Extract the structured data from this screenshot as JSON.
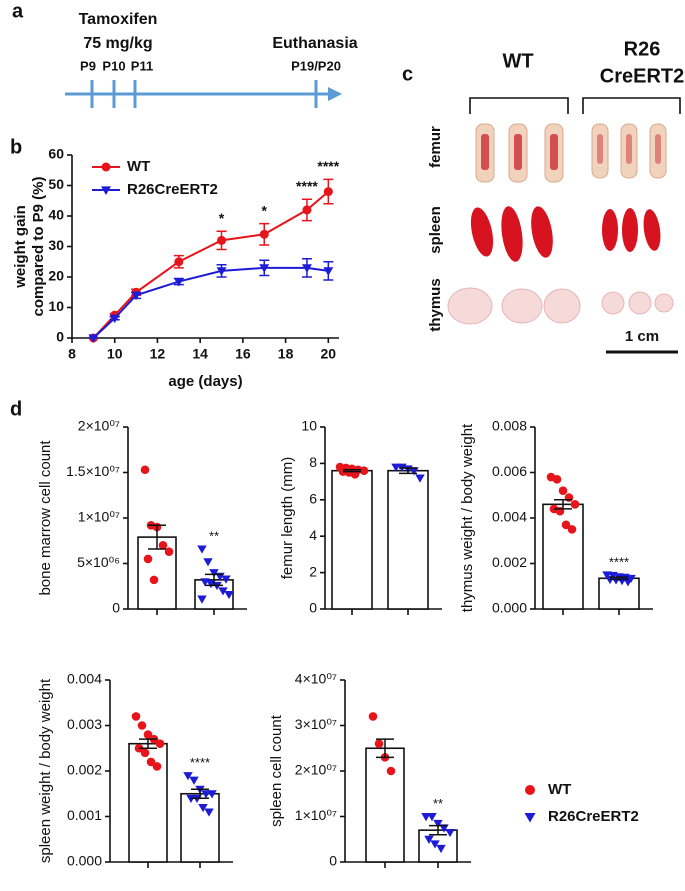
{
  "panel_labels": [
    "a",
    "b",
    "c",
    "d"
  ],
  "timeline": {
    "drug": "Tamoxifen",
    "dose": "75 mg/kg",
    "end": "Euthanasia",
    "days": [
      "P9",
      "P10",
      "P11",
      "P19/P20"
    ]
  },
  "photo": {
    "columns": [
      [
        "WT"
      ],
      [
        "R26",
        "CreERT2"
      ]
    ],
    "rows": [
      "femur",
      "spleen",
      "thymus"
    ],
    "scale_bar": "1 cm"
  },
  "legend": [
    {
      "name": "WT",
      "color": "#e8141b",
      "marker": "circle"
    },
    {
      "name": "R26CreERT2",
      "color": "#1c1cd6",
      "marker": "triangle-down"
    }
  ],
  "chart_data": [
    {
      "type": "line",
      "xlabel": "age (days)",
      "ylabel": [
        "weight gain",
        "compared to P9 (%)"
      ],
      "x": [
        9,
        10,
        11,
        13,
        15,
        17,
        19,
        20
      ],
      "series": [
        {
          "name": "WT",
          "color": "#e8141b",
          "marker": "circle",
          "values": [
            0,
            7.5,
            15,
            25,
            32,
            34,
            42,
            48
          ],
          "errors": [
            0,
            0.5,
            1,
            2,
            3,
            3.5,
            3.5,
            4
          ]
        },
        {
          "name": "R26CreERT2",
          "color": "#1c1cd6",
          "marker": "triangle-down",
          "values": [
            0,
            6.5,
            14,
            18.5,
            22,
            23,
            23,
            22
          ],
          "errors": [
            0,
            0.5,
            1,
            1,
            2,
            2.5,
            3,
            3
          ]
        }
      ],
      "annotations": [
        {
          "x": 15,
          "text": "*"
        },
        {
          "x": 17,
          "text": "*"
        },
        {
          "x": 19,
          "text": "****"
        },
        {
          "x": 20,
          "text": "****"
        }
      ],
      "xlim": [
        8,
        20.5
      ],
      "xticks": [
        8,
        10,
        12,
        14,
        16,
        18,
        20
      ],
      "ylim": [
        0,
        60
      ],
      "yticks": [
        0,
        10,
        20,
        30,
        40,
        50,
        60
      ],
      "legend": "upper left"
    },
    {
      "type": "bar",
      "ylabel": "bone marrow cell count",
      "values": [
        7900000,
        3200000
      ],
      "errors": [
        1300000,
        600000
      ],
      "points": [
        [
          15300000,
          9200000,
          9000000,
          7000000,
          6300000,
          5500000,
          3200000
        ],
        [
          6600000,
          5200000,
          4000000,
          3600000,
          3300000,
          3000000,
          2800000,
          2600000,
          2000000,
          1600000,
          1100000
        ]
      ],
      "significance": [
        null,
        "**"
      ],
      "ylim": [
        0,
        20000000
      ],
      "yticks": [
        0,
        {
          "value": 5000000,
          "label": "5×10⁰⁶"
        },
        {
          "value": 10000000,
          "label": "1×10⁰⁷"
        },
        {
          "value": 15000000,
          "label": "1.5×10⁰⁷"
        },
        {
          "value": 20000000,
          "label": "2×10⁰⁷"
        }
      ]
    },
    {
      "type": "bar",
      "ylabel": "femur length (mm)",
      "values": [
        7.6,
        7.6
      ],
      "errors": [
        0.05,
        0.15
      ],
      "points": [
        [
          7.8,
          7.75,
          7.7,
          7.65,
          7.6,
          7.55,
          7.5,
          7.4
        ],
        [
          7.8,
          7.8,
          7.7,
          7.6,
          7.2
        ]
      ],
      "significance": [
        null,
        null
      ],
      "ylim": [
        0,
        10
      ],
      "yticks": [
        0,
        2,
        4,
        6,
        8,
        10
      ]
    },
    {
      "type": "bar",
      "ylabel": "thymus weight / body weight",
      "values": [
        0.0046,
        0.00135
      ],
      "errors": [
        0.0002,
        5e-05
      ],
      "points": [
        [
          0.0058,
          0.0057,
          0.0052,
          0.0049,
          0.0046,
          0.0044,
          0.0043,
          0.0037,
          0.0035
        ],
        [
          0.0015,
          0.00148,
          0.00142,
          0.0014,
          0.00135,
          0.0013,
          0.00128,
          0.00125,
          0.0012
        ]
      ],
      "significance": [
        null,
        "****"
      ],
      "ylim": [
        0,
        0.008
      ],
      "yticks": [
        {
          "value": 0,
          "label": "0.000"
        },
        0.002,
        0.004,
        0.006,
        0.008
      ]
    },
    {
      "type": "bar",
      "ylabel": "spleen weight / body weight",
      "values": [
        0.0026,
        0.0015
      ],
      "errors": [
        0.0001,
        0.0001
      ],
      "points": [
        [
          0.0032,
          0.003,
          0.0028,
          0.0027,
          0.0026,
          0.0025,
          0.0024,
          0.0022,
          0.0021
        ],
        [
          0.0019,
          0.0018,
          0.0016,
          0.0015,
          0.0015,
          0.0014,
          0.0014,
          0.0012,
          0.0011
        ]
      ],
      "significance": [
        null,
        "****"
      ],
      "ylim": [
        0,
        0.004
      ],
      "yticks": [
        {
          "value": 0,
          "label": "0.000"
        },
        0.001,
        0.002,
        0.003,
        0.004
      ]
    },
    {
      "type": "bar",
      "ylabel": "spleen cell count",
      "values": [
        25000000,
        7000000
      ],
      "errors": [
        2000000,
        1000000
      ],
      "points": [
        [
          32000000,
          26000000,
          23000000,
          20000000
        ],
        [
          10000000,
          10000000,
          8500000,
          7500000,
          6500000,
          5000000,
          4000000,
          3000000
        ]
      ],
      "significance": [
        null,
        "**"
      ],
      "ylim": [
        0,
        40000000
      ],
      "yticks": [
        0,
        {
          "value": 10000000,
          "label": "1×10⁰⁷"
        },
        {
          "value": 20000000,
          "label": "2×10⁰⁷"
        },
        {
          "value": 30000000,
          "label": "3×10⁰⁷"
        },
        {
          "value": 40000000,
          "label": "4×10⁰⁷"
        }
      ]
    }
  ]
}
